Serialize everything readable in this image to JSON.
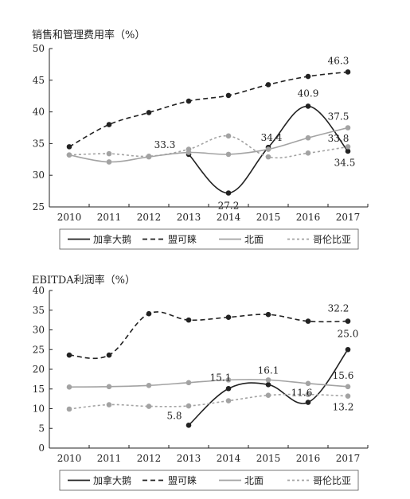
{
  "chart_data": [
    {
      "type": "line",
      "title": "销售和管理费用率（%）",
      "categories": [
        "2010",
        "2011",
        "2012",
        "2013",
        "2014",
        "2015",
        "2016",
        "2017"
      ],
      "ylim": [
        25,
        50
      ],
      "yticks": [
        25,
        30,
        35,
        40,
        45,
        50
      ],
      "grid": false,
      "legend_position": "bottom",
      "series": [
        {
          "name": "加拿大鹅",
          "style": "solid",
          "color": "#222222",
          "values": [
            null,
            null,
            null,
            33.3,
            27.2,
            34.4,
            40.9,
            33.8
          ]
        },
        {
          "name": "盟可睐",
          "style": "dashed",
          "color": "#222222",
          "values": [
            34.5,
            38.0,
            39.9,
            41.7,
            42.6,
            44.3,
            45.6,
            46.3
          ]
        },
        {
          "name": "北面",
          "style": "solid",
          "color": "#a3a3a3",
          "values": [
            33.2,
            32.1,
            32.9,
            33.6,
            33.3,
            34.1,
            35.9,
            37.5
          ]
        },
        {
          "name": "哥伦比亚",
          "style": "dotted",
          "color": "#a3a3a3",
          "values": [
            33.2,
            33.4,
            33.0,
            34.1,
            36.2,
            32.9,
            33.5,
            34.5
          ]
        }
      ],
      "labels": [
        {
          "series": 0,
          "index": 3,
          "text": "33.3"
        },
        {
          "series": 0,
          "index": 4,
          "text": "27.2"
        },
        {
          "series": 0,
          "index": 5,
          "text": "34.4"
        },
        {
          "series": 0,
          "index": 6,
          "text": "40.9"
        },
        {
          "series": 1,
          "index": 7,
          "text": "46.3"
        },
        {
          "series": 2,
          "index": 7,
          "text": "37.5"
        },
        {
          "series": 0,
          "index": 7,
          "text": "33.8"
        },
        {
          "series": 3,
          "index": 7,
          "text": "34.5"
        }
      ]
    },
    {
      "type": "line",
      "title": "EBITDA利润率（%）",
      "categories": [
        "2010",
        "2011",
        "2012",
        "2013",
        "2014",
        "2015",
        "2016",
        "2017"
      ],
      "ylim": [
        0,
        40
      ],
      "yticks": [
        0,
        5,
        10,
        15,
        20,
        25,
        30,
        35,
        40
      ],
      "grid": false,
      "legend_position": "bottom",
      "series": [
        {
          "name": "加拿大鹅",
          "style": "solid",
          "color": "#222222",
          "values": [
            null,
            null,
            null,
            5.8,
            15.1,
            16.1,
            11.6,
            25.0
          ]
        },
        {
          "name": "盟可睐",
          "style": "dashed",
          "color": "#222222",
          "values": [
            23.6,
            23.6,
            34.1,
            32.5,
            33.2,
            33.9,
            32.2,
            32.2
          ]
        },
        {
          "name": "北面",
          "style": "solid",
          "color": "#a3a3a3",
          "values": [
            15.5,
            15.6,
            15.9,
            16.6,
            17.3,
            17.3,
            16.4,
            15.6
          ]
        },
        {
          "name": "哥伦比亚",
          "style": "dotted",
          "color": "#a3a3a3",
          "values": [
            9.9,
            11.0,
            10.6,
            10.7,
            12.0,
            13.4,
            13.6,
            13.2
          ]
        }
      ],
      "labels": [
        {
          "series": 0,
          "index": 3,
          "text": "5.8"
        },
        {
          "series": 0,
          "index": 4,
          "text": "15.1"
        },
        {
          "series": 0,
          "index": 5,
          "text": "16.1"
        },
        {
          "series": 0,
          "index": 6,
          "text": "11.6"
        },
        {
          "series": 1,
          "index": 7,
          "text": "32.2"
        },
        {
          "series": 0,
          "index": 7,
          "text": "25.0"
        },
        {
          "series": 2,
          "index": 7,
          "text": "15.6"
        },
        {
          "series": 3,
          "index": 7,
          "text": "13.2"
        }
      ]
    }
  ]
}
